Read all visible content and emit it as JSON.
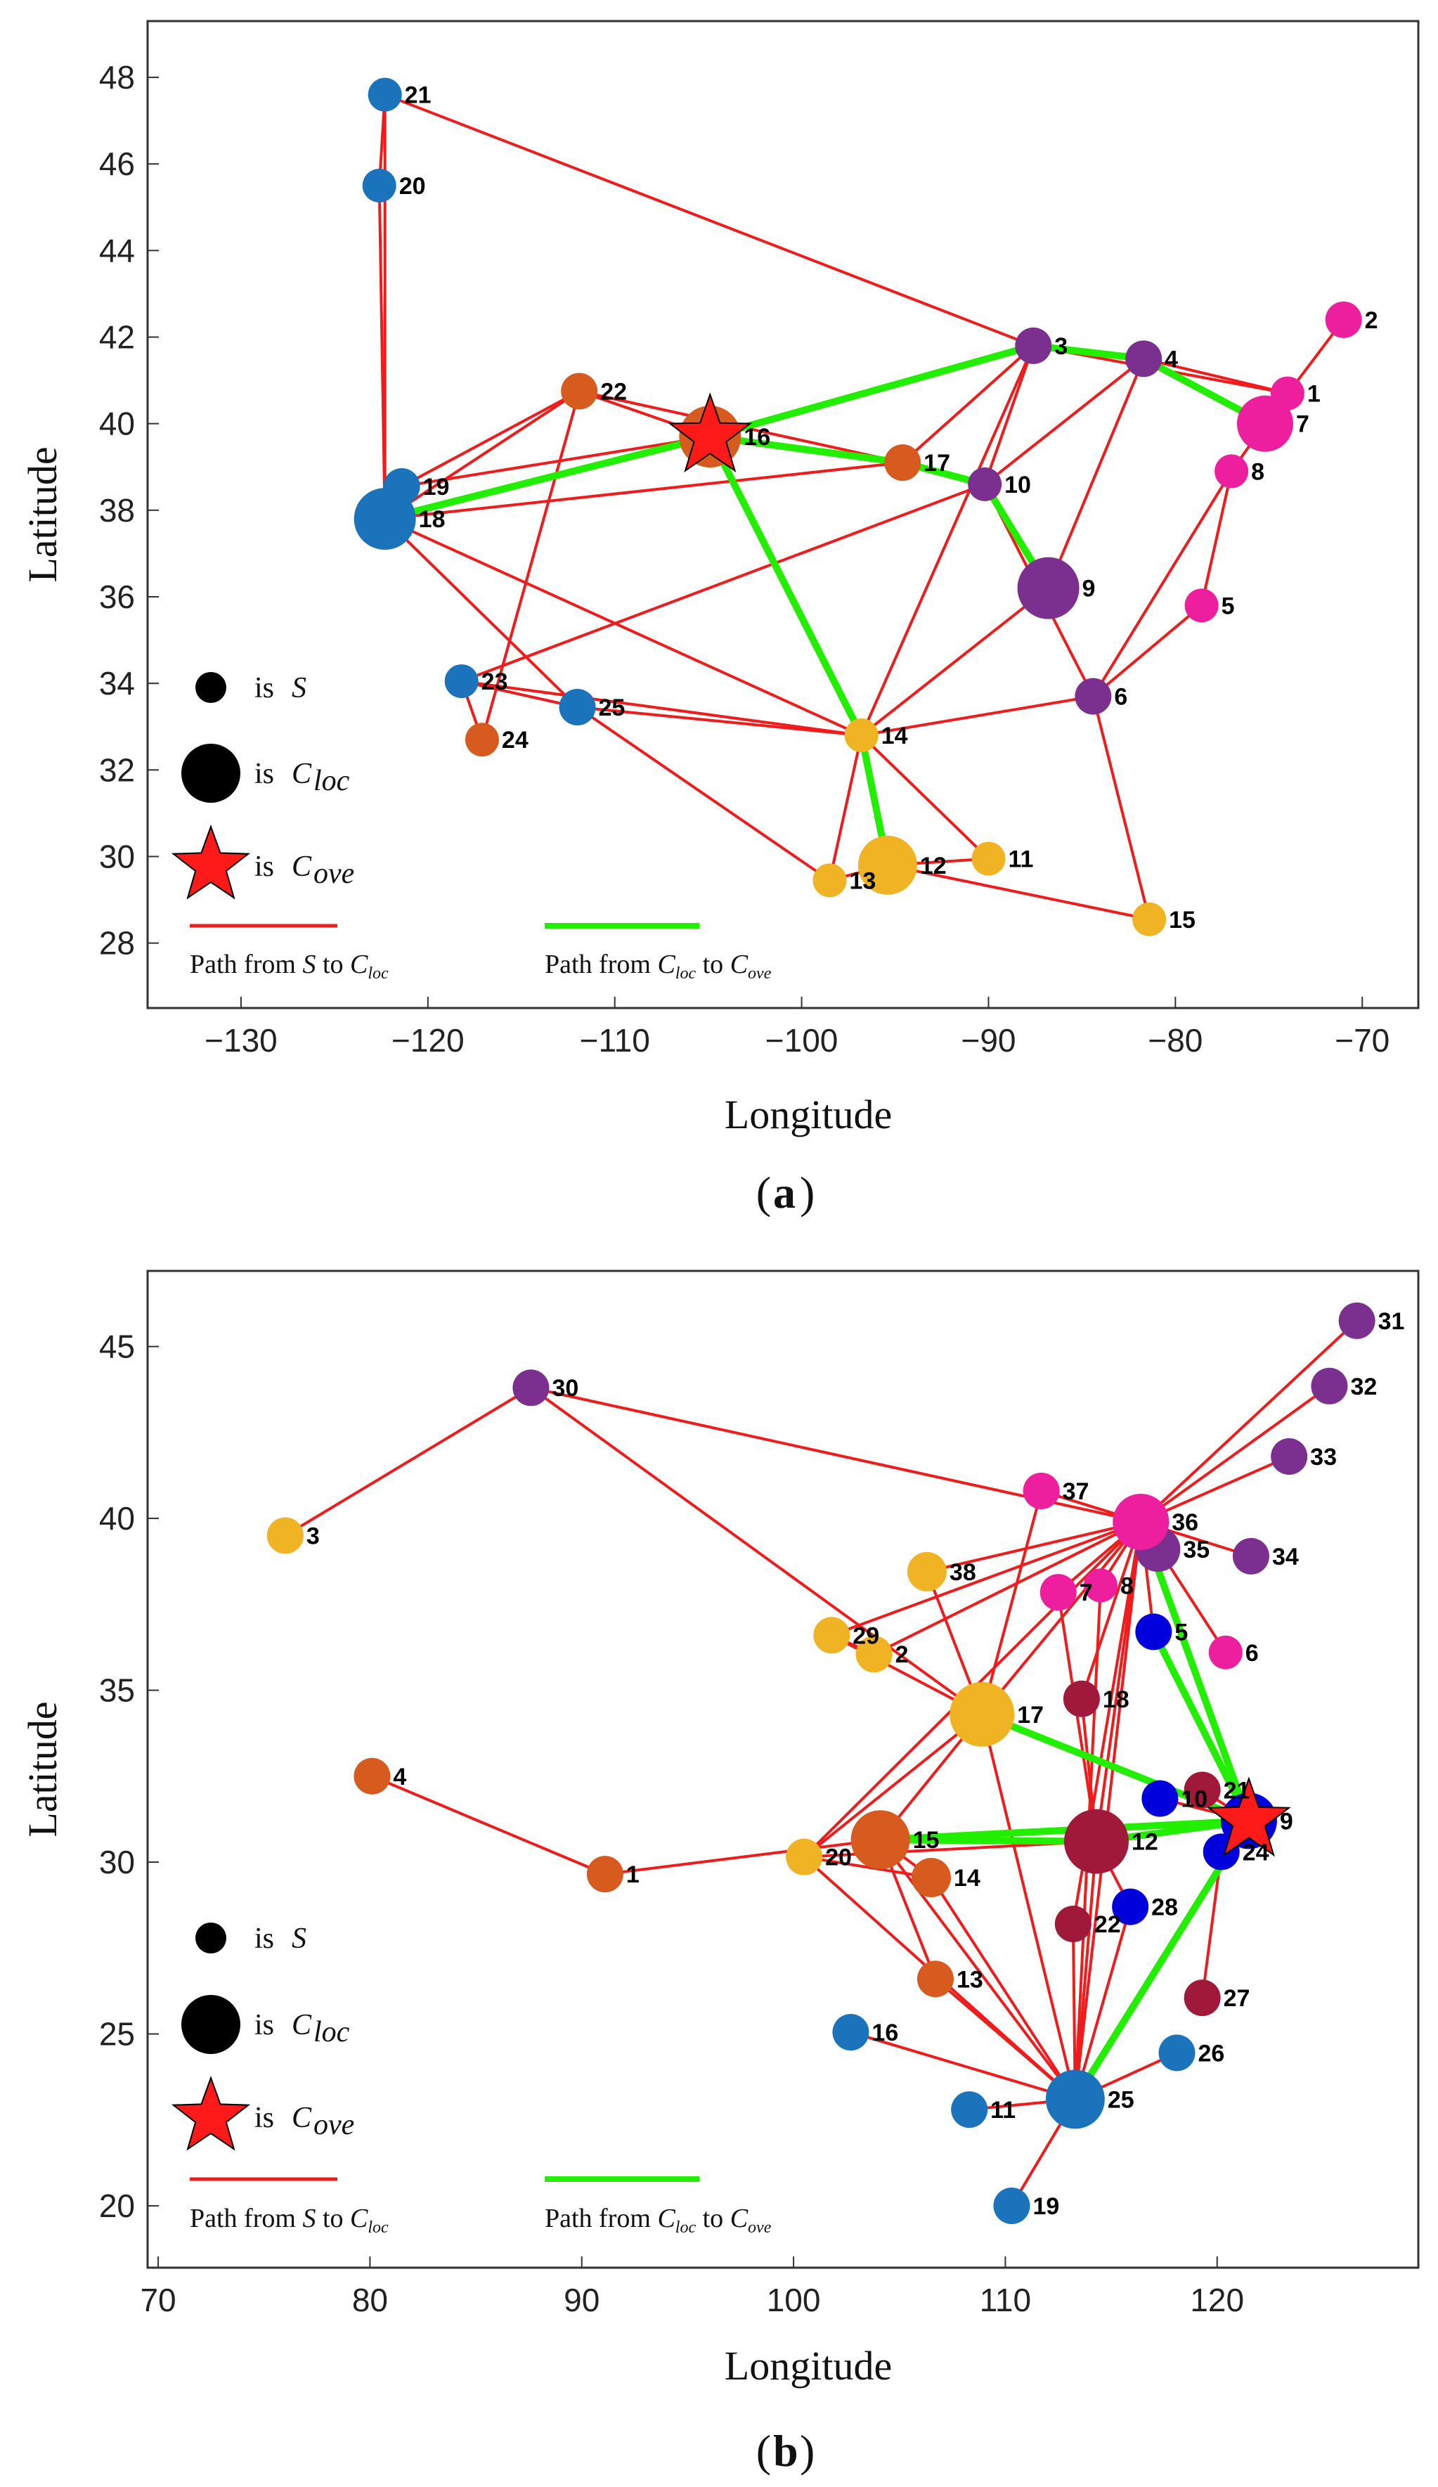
{
  "colors": {
    "red_path": "#ee1c1c",
    "green_path": "#22ee00",
    "star": "#ff1a1a",
    "legend_dot": "#000000",
    "axis": "#333333"
  },
  "legend": {
    "is_prefix": "is",
    "s_symbol": "S",
    "c_symbol": "C",
    "loc_sub": "loc",
    "ove_sub": "ove",
    "path_from": "Path from",
    "to_word": "to"
  },
  "chart_data": [
    {
      "type": "scatter",
      "panel_label": "a",
      "xlabel": "Longitude",
      "ylabel": "Latitude",
      "xlim": [
        -135,
        -67
      ],
      "ylim": [
        26.5,
        49.3
      ],
      "xticks": [
        -130,
        -120,
        -110,
        -100,
        -90,
        -80,
        -70
      ],
      "yticks": [
        28,
        30,
        32,
        34,
        36,
        38,
        40,
        42,
        44,
        46,
        48
      ],
      "nodes": [
        {
          "id": "1",
          "x": -74.0,
          "y": 40.7,
          "r": 24,
          "color": "#ee1f9e"
        },
        {
          "id": "2",
          "x": -71.0,
          "y": 42.4,
          "r": 26,
          "color": "#ee1f9e"
        },
        {
          "id": "3",
          "x": -87.6,
          "y": 41.8,
          "r": 26,
          "color": "#7b2f8e"
        },
        {
          "id": "4",
          "x": -81.7,
          "y": 41.5,
          "r": 26,
          "color": "#7b2f8e"
        },
        {
          "id": "5",
          "x": -78.6,
          "y": 35.8,
          "r": 24,
          "color": "#ee1f9e"
        },
        {
          "id": "6",
          "x": -84.4,
          "y": 33.7,
          "r": 26,
          "color": "#7b2f8e"
        },
        {
          "id": "7",
          "x": -75.2,
          "y": 40.0,
          "r": 40,
          "color": "#ee1f9e"
        },
        {
          "id": "8",
          "x": -77.0,
          "y": 38.9,
          "r": 24,
          "color": "#ee1f9e"
        },
        {
          "id": "9",
          "x": -86.8,
          "y": 36.2,
          "r": 44,
          "color": "#7b2f8e"
        },
        {
          "id": "10",
          "x": -90.2,
          "y": 38.6,
          "r": 24,
          "color": "#7b2f8e"
        },
        {
          "id": "11",
          "x": -90.0,
          "y": 29.95,
          "r": 24,
          "color": "#f0b323"
        },
        {
          "id": "12",
          "x": -95.4,
          "y": 29.8,
          "r": 42,
          "color": "#f0b323"
        },
        {
          "id": "13",
          "x": -98.5,
          "y": 29.45,
          "r": 24,
          "color": "#f0b323"
        },
        {
          "id": "14",
          "x": -96.8,
          "y": 32.8,
          "r": 24,
          "color": "#f0b323"
        },
        {
          "id": "15",
          "x": -81.4,
          "y": 28.55,
          "r": 24,
          "color": "#f0b323"
        },
        {
          "id": "16",
          "x": -104.9,
          "y": 39.7,
          "r": 44,
          "color": "#d75a1e"
        },
        {
          "id": "17",
          "x": -94.6,
          "y": 39.1,
          "r": 26,
          "color": "#d75a1e"
        },
        {
          "id": "18",
          "x": -122.3,
          "y": 37.8,
          "r": 44,
          "color": "#1a73bb"
        },
        {
          "id": "19",
          "x": -121.4,
          "y": 38.55,
          "r": 26,
          "color": "#1a73bb"
        },
        {
          "id": "20",
          "x": -122.6,
          "y": 45.5,
          "r": 24,
          "color": "#1a73bb"
        },
        {
          "id": "21",
          "x": -122.3,
          "y": 47.6,
          "r": 24,
          "color": "#1a73bb"
        },
        {
          "id": "22",
          "x": -111.9,
          "y": 40.75,
          "r": 26,
          "color": "#d75a1e"
        },
        {
          "id": "23",
          "x": -118.2,
          "y": 34.05,
          "r": 24,
          "color": "#1a73bb"
        },
        {
          "id": "24",
          "x": -117.1,
          "y": 32.7,
          "r": 24,
          "color": "#d75a1e"
        },
        {
          "id": "25",
          "x": -112.0,
          "y": 33.45,
          "r": 26,
          "color": "#1a73bb"
        }
      ],
      "red_edges": [
        [
          "21",
          "20"
        ],
        [
          "21",
          "18"
        ],
        [
          "20",
          "18"
        ],
        [
          "21",
          "3"
        ],
        [
          "18",
          "19"
        ],
        [
          "19",
          "22"
        ],
        [
          "18",
          "22"
        ],
        [
          "18",
          "16"
        ],
        [
          "18",
          "17"
        ],
        [
          "18",
          "14"
        ],
        [
          "18",
          "25"
        ],
        [
          "19",
          "16"
        ],
        [
          "22",
          "16"
        ],
        [
          "22",
          "17"
        ],
        [
          "22",
          "24"
        ],
        [
          "16",
          "3"
        ],
        [
          "16",
          "14"
        ],
        [
          "3",
          "17"
        ],
        [
          "3",
          "4"
        ],
        [
          "3",
          "1"
        ],
        [
          "3",
          "10"
        ],
        [
          "3",
          "14"
        ],
        [
          "4",
          "9"
        ],
        [
          "4",
          "10"
        ],
        [
          "4",
          "1"
        ],
        [
          "17",
          "10"
        ],
        [
          "10",
          "9"
        ],
        [
          "10",
          "6"
        ],
        [
          "10",
          "23"
        ],
        [
          "23",
          "25"
        ],
        [
          "23",
          "24"
        ],
        [
          "23",
          "14"
        ],
        [
          "25",
          "14"
        ],
        [
          "25",
          "13"
        ],
        [
          "14",
          "13"
        ],
        [
          "14",
          "12"
        ],
        [
          "14",
          "11"
        ],
        [
          "14",
          "6"
        ],
        [
          "14",
          "9"
        ],
        [
          "13",
          "12"
        ],
        [
          "12",
          "11"
        ],
        [
          "12",
          "15"
        ],
        [
          "6",
          "15"
        ],
        [
          "6",
          "5"
        ],
        [
          "6",
          "8"
        ],
        [
          "8",
          "7"
        ],
        [
          "7",
          "1"
        ],
        [
          "2",
          "7"
        ],
        [
          "5",
          "8"
        ]
      ],
      "green_edges": [
        [
          "18",
          "16"
        ],
        [
          "16",
          "3"
        ],
        [
          "3",
          "4"
        ],
        [
          "4",
          "7"
        ],
        [
          "16",
          "17"
        ],
        [
          "17",
          "10"
        ],
        [
          "10",
          "9"
        ],
        [
          "16",
          "14"
        ],
        [
          "14",
          "12"
        ]
      ],
      "star_node": "16"
    },
    {
      "type": "scatter",
      "panel_label": "b",
      "xlabel": "Longitude",
      "ylabel": "Latitude",
      "xlim": [
        69.5,
        129.5
      ],
      "ylim": [
        18.2,
        47.2
      ],
      "xticks": [
        70,
        80,
        90,
        100,
        110,
        120
      ],
      "yticks": [
        20,
        25,
        30,
        35,
        40,
        45
      ],
      "nodes": [
        {
          "id": "1",
          "x": 91.1,
          "y": 29.65,
          "r": 26,
          "color": "#d75a1e"
        },
        {
          "id": "2",
          "x": 103.8,
          "y": 36.05,
          "r": 26,
          "color": "#f0b323"
        },
        {
          "id": "3",
          "x": 76.0,
          "y": 39.5,
          "r": 26,
          "color": "#f0b323"
        },
        {
          "id": "4",
          "x": 80.1,
          "y": 32.5,
          "r": 26,
          "color": "#d75a1e"
        },
        {
          "id": "5",
          "x": 117.0,
          "y": 36.7,
          "r": 26,
          "color": "#0000dd"
        },
        {
          "id": "6",
          "x": 120.4,
          "y": 36.1,
          "r": 24,
          "color": "#ee1f9e"
        },
        {
          "id": "7",
          "x": 112.5,
          "y": 37.85,
          "r": 26,
          "color": "#ee1f9e"
        },
        {
          "id": "8",
          "x": 114.5,
          "y": 38.05,
          "r": 24,
          "color": "#ee1f9e"
        },
        {
          "id": "9",
          "x": 121.5,
          "y": 31.2,
          "r": 40,
          "color": "#0000dd"
        },
        {
          "id": "10",
          "x": 117.3,
          "y": 31.85,
          "r": 26,
          "color": "#0000dd"
        },
        {
          "id": "11",
          "x": 108.3,
          "y": 22.8,
          "r": 26,
          "color": "#1a73bb"
        },
        {
          "id": "12",
          "x": 114.3,
          "y": 30.6,
          "r": 46,
          "color": "#a0183a"
        },
        {
          "id": "13",
          "x": 106.7,
          "y": 26.6,
          "r": 26,
          "color": "#d75a1e"
        },
        {
          "id": "14",
          "x": 106.5,
          "y": 29.55,
          "r": 28,
          "color": "#d75a1e"
        },
        {
          "id": "15",
          "x": 104.1,
          "y": 30.65,
          "r": 42,
          "color": "#d75a1e"
        },
        {
          "id": "16",
          "x": 102.7,
          "y": 25.05,
          "r": 26,
          "color": "#1a73bb"
        },
        {
          "id": "17",
          "x": 108.9,
          "y": 34.3,
          "r": 46,
          "color": "#f0b323"
        },
        {
          "id": "18",
          "x": 113.6,
          "y": 34.75,
          "r": 26,
          "color": "#a0183a"
        },
        {
          "id": "19",
          "x": 110.3,
          "y": 20.0,
          "r": 26,
          "color": "#1a73bb"
        },
        {
          "id": "20",
          "x": 100.5,
          "y": 30.15,
          "r": 26,
          "color": "#f0b323"
        },
        {
          "id": "21",
          "x": 119.3,
          "y": 32.1,
          "r": 26,
          "color": "#a0183a"
        },
        {
          "id": "22",
          "x": 113.2,
          "y": 28.2,
          "r": 26,
          "color": "#a0183a"
        },
        {
          "id": "24",
          "x": 120.2,
          "y": 30.3,
          "r": 26,
          "color": "#0000dd"
        },
        {
          "id": "25",
          "x": 113.3,
          "y": 23.1,
          "r": 42,
          "color": "#1a73bb"
        },
        {
          "id": "26",
          "x": 118.1,
          "y": 24.45,
          "r": 26,
          "color": "#1a73bb"
        },
        {
          "id": "27",
          "x": 119.3,
          "y": 26.05,
          "r": 26,
          "color": "#a0183a"
        },
        {
          "id": "28",
          "x": 115.9,
          "y": 28.7,
          "r": 26,
          "color": "#0000dd"
        },
        {
          "id": "29",
          "x": 101.8,
          "y": 36.6,
          "r": 26,
          "color": "#f0b323"
        },
        {
          "id": "30",
          "x": 87.6,
          "y": 43.8,
          "r": 26,
          "color": "#7b2f8e"
        },
        {
          "id": "31",
          "x": 126.6,
          "y": 45.75,
          "r": 26,
          "color": "#7b2f8e"
        },
        {
          "id": "32",
          "x": 125.3,
          "y": 43.85,
          "r": 26,
          "color": "#7b2f8e"
        },
        {
          "id": "33",
          "x": 123.4,
          "y": 41.8,
          "r": 26,
          "color": "#7b2f8e"
        },
        {
          "id": "34",
          "x": 121.6,
          "y": 38.9,
          "r": 26,
          "color": "#7b2f8e"
        },
        {
          "id": "35",
          "x": 117.2,
          "y": 39.1,
          "r": 32,
          "color": "#7b2f8e"
        },
        {
          "id": "36",
          "x": 116.4,
          "y": 39.9,
          "r": 40,
          "color": "#ee1f9e"
        },
        {
          "id": "37",
          "x": 111.7,
          "y": 40.8,
          "r": 26,
          "color": "#ee1f9e"
        },
        {
          "id": "38",
          "x": 106.3,
          "y": 38.45,
          "r": 28,
          "color": "#f0b323"
        }
      ],
      "red_edges": [
        [
          "3",
          "30"
        ],
        [
          "30",
          "36"
        ],
        [
          "30",
          "17"
        ],
        [
          "4",
          "1"
        ],
        [
          "1",
          "15"
        ],
        [
          "31",
          "36"
        ],
        [
          "32",
          "36"
        ],
        [
          "33",
          "36"
        ],
        [
          "34",
          "36"
        ],
        [
          "37",
          "36"
        ],
        [
          "35",
          "36"
        ],
        [
          "36",
          "38"
        ],
        [
          "36",
          "29"
        ],
        [
          "36",
          "2"
        ],
        [
          "36",
          "17"
        ],
        [
          "36",
          "7"
        ],
        [
          "36",
          "8"
        ],
        [
          "36",
          "18"
        ],
        [
          "36",
          "12"
        ],
        [
          "36",
          "22"
        ],
        [
          "36",
          "25"
        ],
        [
          "36",
          "20"
        ],
        [
          "36",
          "6"
        ],
        [
          "36",
          "5"
        ],
        [
          "38",
          "17"
        ],
        [
          "29",
          "17"
        ],
        [
          "2",
          "29"
        ],
        [
          "37",
          "17"
        ],
        [
          "17",
          "20"
        ],
        [
          "17",
          "25"
        ],
        [
          "17",
          "15"
        ],
        [
          "15",
          "12"
        ],
        [
          "15",
          "9"
        ],
        [
          "15",
          "13"
        ],
        [
          "15",
          "14"
        ],
        [
          "15",
          "25"
        ],
        [
          "20",
          "12"
        ],
        [
          "20",
          "25"
        ],
        [
          "20",
          "14"
        ],
        [
          "16",
          "25"
        ],
        [
          "11",
          "25"
        ],
        [
          "19",
          "25"
        ],
        [
          "13",
          "25"
        ],
        [
          "14",
          "25"
        ],
        [
          "26",
          "25"
        ],
        [
          "28",
          "25"
        ],
        [
          "22",
          "25"
        ],
        [
          "12",
          "25"
        ],
        [
          "27",
          "24"
        ],
        [
          "12",
          "9"
        ],
        [
          "10",
          "9"
        ],
        [
          "21",
          "9"
        ],
        [
          "24",
          "9"
        ],
        [
          "28",
          "12"
        ],
        [
          "18",
          "12"
        ],
        [
          "7",
          "12"
        ],
        [
          "8",
          "25"
        ]
      ],
      "green_edges": [
        [
          "36",
          "9"
        ],
        [
          "17",
          "9"
        ],
        [
          "15",
          "9"
        ],
        [
          "12",
          "9"
        ],
        [
          "25",
          "9"
        ],
        [
          "15",
          "12"
        ],
        [
          "5",
          "9"
        ]
      ],
      "star_node": "9"
    }
  ]
}
